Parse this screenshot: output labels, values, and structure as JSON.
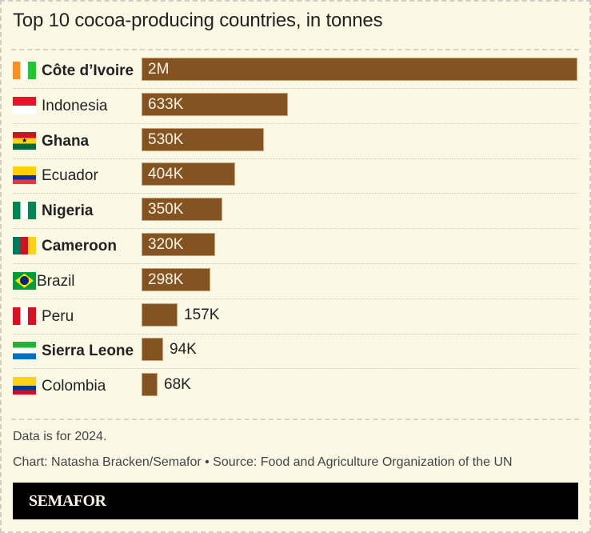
{
  "title": "Top 10 cocoa-producing countries, in tonnes",
  "note": "Data is for 2024.",
  "credit": "Chart: Natasha Bracken/Semafor • Source: Food and Agriculture Organization of the UN",
  "brand": "SEMAFOR",
  "colors": {
    "bar": "#845322",
    "background": "#fbf9e6",
    "brand_bg": "#000000"
  },
  "chart_data": {
    "type": "bar",
    "orientation": "horizontal",
    "title": "Top 10 cocoa-producing countries, in tonnes",
    "xlabel": "",
    "ylabel": "",
    "categories": [
      "Côte d’Ivoire",
      "Indonesia",
      "Ghana",
      "Ecuador",
      "Nigeria",
      "Cameroon",
      "Brazil",
      "Peru",
      "Sierra Leone",
      "Colombia"
    ],
    "values": [
      1886000,
      633000,
      530000,
      404000,
      350000,
      320000,
      298000,
      157000,
      94000,
      68000
    ],
    "labels": [
      "2M",
      "633K",
      "530K",
      "404K",
      "350K",
      "320K",
      "298K",
      "157K",
      "94K",
      "68K"
    ],
    "bold": [
      true,
      false,
      true,
      false,
      true,
      true,
      false,
      false,
      true,
      false
    ],
    "grid": false,
    "legend": "none"
  }
}
